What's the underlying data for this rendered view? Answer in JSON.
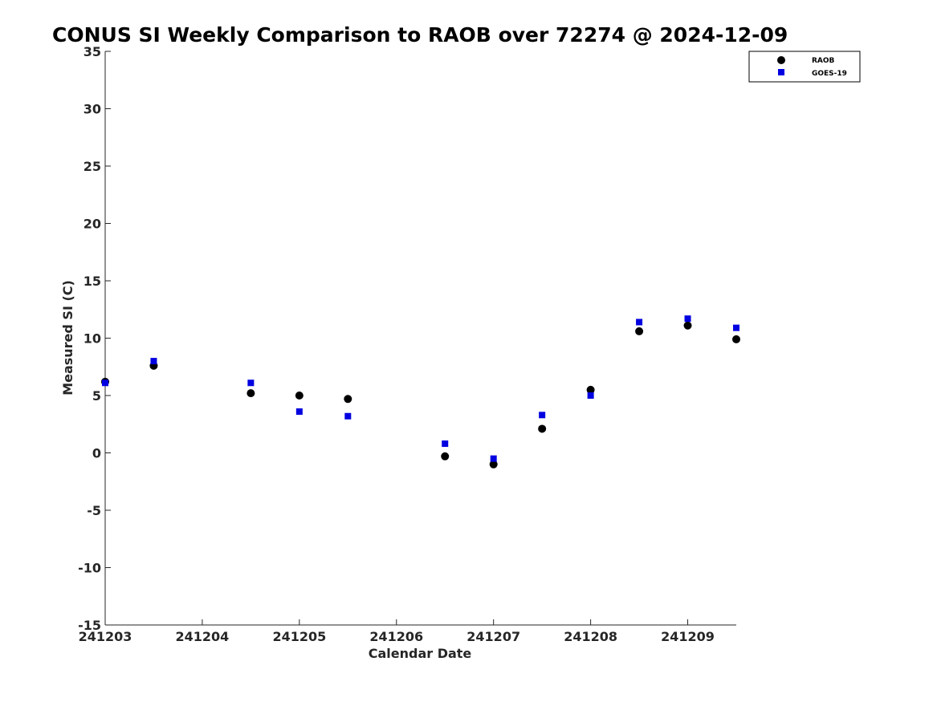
{
  "chart_data": {
    "type": "scatter",
    "title": "CONUS SI Weekly Comparison to RAOB over 72274 @ 2024-12-09",
    "xlabel": "Calendar Date",
    "ylabel": "Measured SI (C)",
    "xlim": [
      0,
      6.5
    ],
    "ylim": [
      -15,
      35
    ],
    "yticks": [
      -15,
      -10,
      -5,
      0,
      5,
      10,
      15,
      20,
      25,
      30,
      35
    ],
    "xticks": [
      0,
      1,
      2,
      3,
      4,
      5,
      6
    ],
    "xtick_labels": [
      "241203",
      "241204",
      "241205",
      "241206",
      "241207",
      "241208",
      "241209"
    ],
    "grid": false,
    "legend_position": "top-right",
    "series": [
      {
        "name": "RAOB",
        "marker": "circle",
        "color": "#000000",
        "x": [
          0,
          0.5,
          1.5,
          2,
          2.5,
          3.5,
          4,
          4.5,
          5,
          5.5,
          6,
          6.5
        ],
        "values": [
          6.2,
          7.6,
          5.2,
          5.0,
          4.7,
          -0.3,
          -1.0,
          2.1,
          5.5,
          10.6,
          11.1,
          9.9
        ]
      },
      {
        "name": "GOES-19",
        "marker": "square",
        "color": "#0000e0",
        "x": [
          0,
          0.5,
          1.5,
          2,
          2.5,
          3.5,
          4,
          4.5,
          5,
          5.5,
          6,
          6.5
        ],
        "values": [
          6.1,
          8.0,
          6.1,
          3.6,
          3.2,
          0.8,
          -0.5,
          3.3,
          5.0,
          11.4,
          11.7,
          10.9
        ]
      }
    ]
  }
}
